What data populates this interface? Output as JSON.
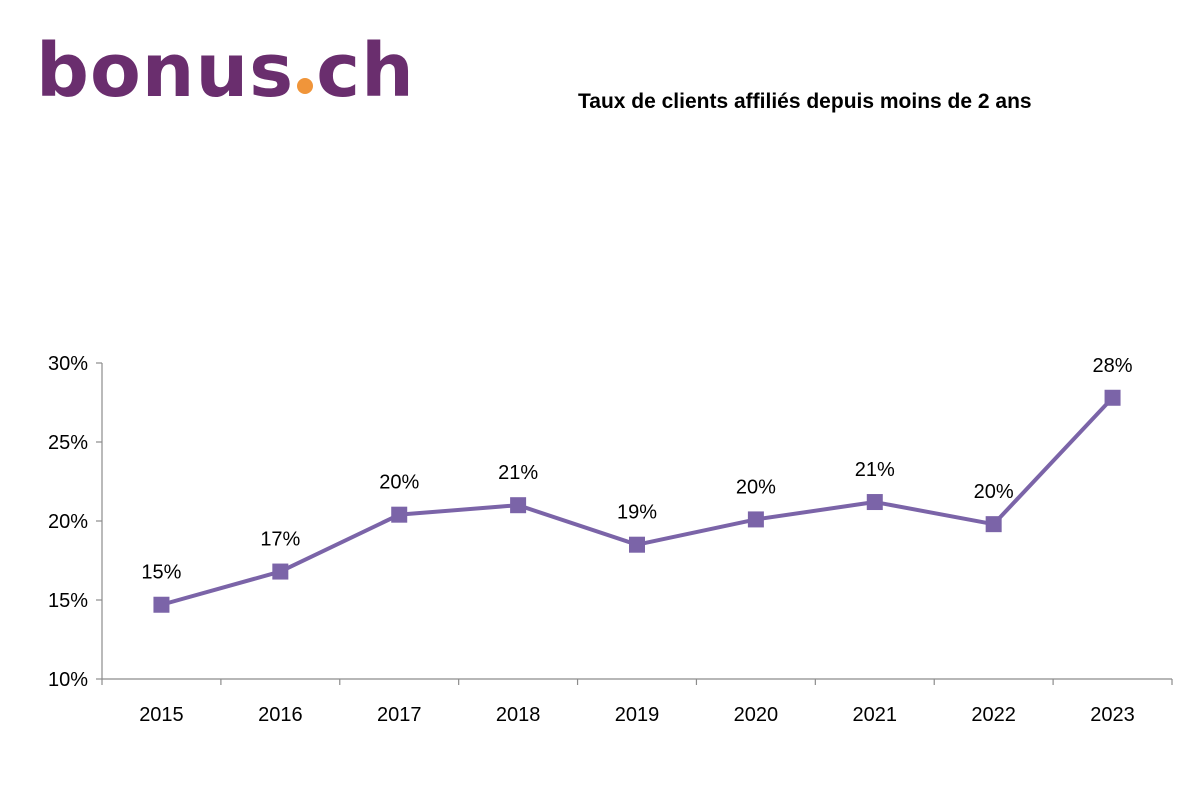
{
  "logo": {
    "part1": "bonus",
    "part2": "ch",
    "dot_color": "#f0953a",
    "color": "#6a2e6e"
  },
  "chart_data": {
    "type": "line",
    "title": "Taux de clients affiliés depuis moins de 2 ans",
    "categories": [
      "2015",
      "2016",
      "2017",
      "2018",
      "2019",
      "2020",
      "2021",
      "2022",
      "2023"
    ],
    "series": [
      {
        "values": [
          14.7,
          16.8,
          20.4,
          21.0,
          18.5,
          20.1,
          21.2,
          19.8,
          27.8
        ],
        "labels": [
          "15%",
          "17%",
          "20%",
          "21%",
          "19%",
          "20%",
          "21%",
          "20%",
          "28%"
        ],
        "color": "#7b64a8"
      }
    ],
    "ylim": [
      10,
      30
    ],
    "yticks": [
      "10%",
      "15%",
      "20%",
      "25%",
      "30%"
    ],
    "ytick_values": [
      10,
      15,
      20,
      25,
      30
    ],
    "grid": false,
    "legend": "none"
  }
}
